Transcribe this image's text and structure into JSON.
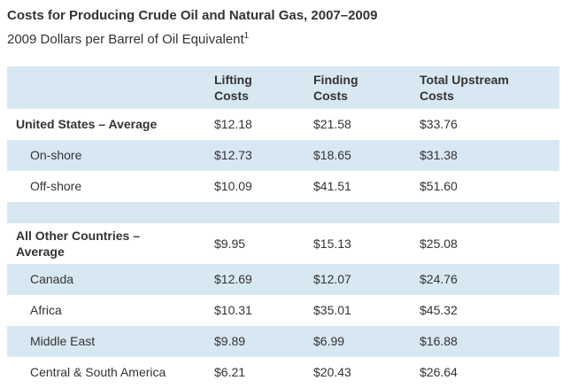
{
  "title": "Costs for Producing Crude Oil and Natural Gas, 2007–2009",
  "subtitle": {
    "text": "2009 Dollars per Barrel of Oil Equivalent",
    "superscript": "1"
  },
  "colors": {
    "row_highlight": "#d8e8f2",
    "text": "#333333",
    "background": "#ffffff"
  },
  "table": {
    "columns": [
      "",
      "Lifting Costs",
      "Finding Costs",
      "Total Upstream Costs"
    ],
    "rows": [
      {
        "kind": "group",
        "label": "United States – Average",
        "lifting": "$12.18",
        "finding": "$21.58",
        "total": "$33.76"
      },
      {
        "kind": "indent",
        "label": "On-shore",
        "lifting": "$12.73",
        "finding": "$18.65",
        "total": "$31.38"
      },
      {
        "kind": "indent",
        "label": "Off-shore",
        "lifting": "$10.09",
        "finding": "$41.51",
        "total": "$51.60"
      },
      {
        "kind": "spacer",
        "label": "",
        "lifting": "",
        "finding": "",
        "total": ""
      },
      {
        "kind": "group",
        "label": "All Other Countries – Average",
        "lifting": "$9.95",
        "finding": "$15.13",
        "total": "$25.08"
      },
      {
        "kind": "indent",
        "label": "Canada",
        "lifting": "$12.69",
        "finding": "$12.07",
        "total": "$24.76"
      },
      {
        "kind": "indent",
        "label": "Africa",
        "lifting": "$10.31",
        "finding": "$35.01",
        "total": "$45.32"
      },
      {
        "kind": "indent",
        "label": "Middle East",
        "lifting": "$9.89",
        "finding": "$6.99",
        "total": "$16.88"
      },
      {
        "kind": "indent",
        "label": "Central & South America",
        "lifting": "$6.21",
        "finding": "$20.43",
        "total": "$26.64"
      }
    ]
  }
}
